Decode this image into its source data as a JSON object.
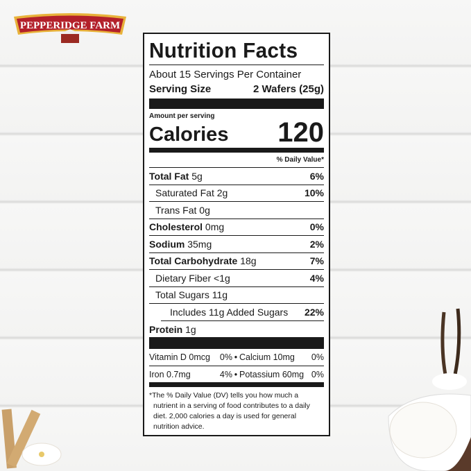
{
  "brand": {
    "logo_text": "PEPPERIDGE FARM",
    "colors": {
      "red": "#b3202a",
      "gold": "#e8b23a"
    }
  },
  "label": {
    "title": "Nutrition Facts",
    "servings": "About 15 Servings Per Container",
    "serving_size_label": "Serving Size",
    "serving_size_value": "2 Wafers (25g)",
    "amount_per_serving": "Amount per serving",
    "calories_label": "Calories",
    "calories_value": "120",
    "dv_header": "% Daily Value*",
    "nutrients": [
      {
        "name": "Total Fat",
        "amount": "5g",
        "dv": "6%",
        "bold": true,
        "indent": 0
      },
      {
        "name": "Saturated Fat",
        "amount": "2g",
        "dv": "10%",
        "bold": false,
        "indent": 1
      },
      {
        "name": "Trans Fat",
        "amount": "0g",
        "dv": "",
        "bold": false,
        "indent": 1
      },
      {
        "name": "Cholesterol",
        "amount": "0mg",
        "dv": "0%",
        "bold": true,
        "indent": 0
      },
      {
        "name": "Sodium",
        "amount": "35mg",
        "dv": "2%",
        "bold": true,
        "indent": 0
      },
      {
        "name": "Total Carbohydrate",
        "amount": "18g",
        "dv": "7%",
        "bold": true,
        "indent": 0
      },
      {
        "name": "Dietary Fiber",
        "amount": "<1g",
        "dv": "4%",
        "bold": false,
        "indent": 1
      },
      {
        "name": "Total Sugars",
        "amount": "11g",
        "dv": "",
        "bold": false,
        "indent": 1
      },
      {
        "name": "Includes 11g Added Sugars",
        "amount": "",
        "dv": "22%",
        "bold": false,
        "indent": 2
      },
      {
        "name": "Protein",
        "amount": "1g",
        "dv": "",
        "bold": true,
        "indent": 0
      }
    ],
    "vitamins": [
      {
        "left": "Vitamin D 0mcg",
        "left_dv": "0%",
        "right": "Calcium 10mg",
        "right_dv": "0%"
      },
      {
        "left": "Iron 0.7mg",
        "left_dv": "4%",
        "right": "Potassium 60mg",
        "right_dv": "0%"
      }
    ],
    "bullet": "•",
    "footnote": "*The % Daily Value (DV) tells you how much a nutrient in a serving of food contributes to a daily diet. 2,000 calories a day is used for general nutrition advice."
  }
}
